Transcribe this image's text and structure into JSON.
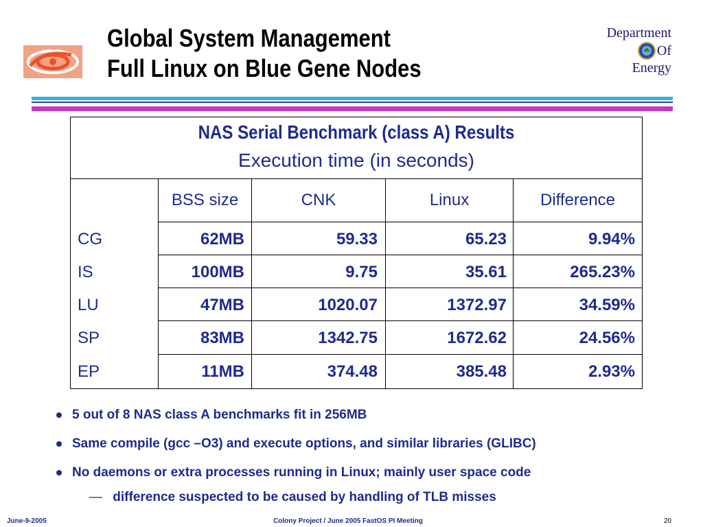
{
  "slide": {
    "title_line1": "Global System Management",
    "title_line2": "Full Linux on Blue Gene Nodes"
  },
  "doe": {
    "line1": "Department",
    "line2": "Of",
    "line3": "Energy"
  },
  "table": {
    "title": "NAS Serial Benchmark (class A) Results",
    "subtitle": "Execution time (in seconds)",
    "columns": [
      "",
      "BSS size",
      "CNK",
      "Linux",
      "Difference"
    ],
    "rows": [
      {
        "name": "CG",
        "bss": "62MB",
        "cnk": "59.33",
        "linux": "65.23",
        "diff": "9.94%"
      },
      {
        "name": "IS",
        "bss": "100MB",
        "cnk": "9.75",
        "linux": "35.61",
        "diff": "265.23%"
      },
      {
        "name": "LU",
        "bss": "47MB",
        "cnk": "1020.07",
        "linux": "1372.97",
        "diff": "34.59%"
      },
      {
        "name": "SP",
        "bss": "83MB",
        "cnk": "1342.75",
        "linux": "1672.62",
        "diff": "24.56%"
      },
      {
        "name": "EP",
        "bss": "11MB",
        "cnk": "374.48",
        "linux": "385.48",
        "diff": "2.93%"
      }
    ]
  },
  "bullets": [
    "5 out of 8 NAS class A benchmarks fit in 256MB",
    "Same compile (gcc –O3) and execute options, and similar libraries (GLIBC)",
    "No daemons or extra processes running in Linux; mainly user space code"
  ],
  "sub_bullet": {
    "dash": "—",
    "text": "difference suspected to be caused by handling of TLB misses"
  },
  "footer": {
    "date": "June-9-2005",
    "center": "Colony Project / June 2005 FastOS PI Meeting",
    "page": "20"
  },
  "colors": {
    "text_blue": "#1d2b8f",
    "rule_cyan": "#29b8d6",
    "rule_blue": "#2a3fa8",
    "rule_magenta": "#c23bc8",
    "logo_orange": "#e8542a"
  }
}
